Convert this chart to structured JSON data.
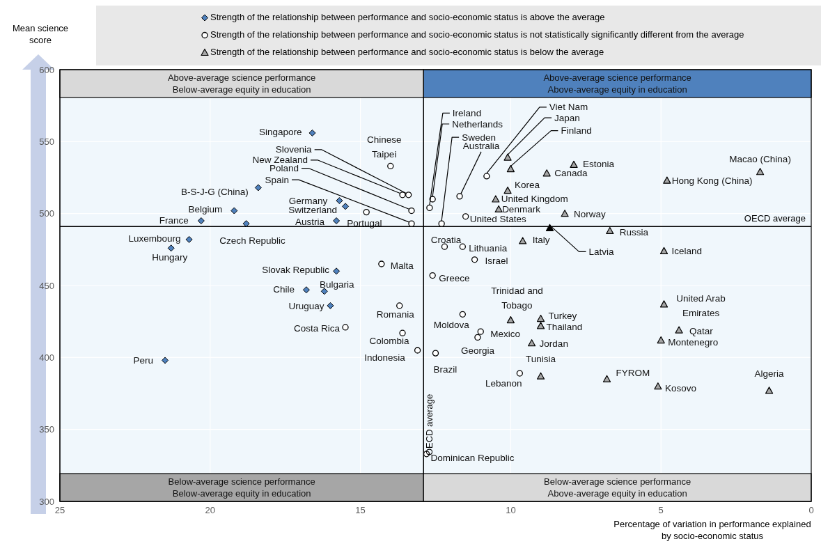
{
  "chart_data": {
    "type": "scatter",
    "xlabel": "Percentage of variation in performance explained by socio-economic status",
    "ylabel": "Mean science score",
    "xlim": [
      25,
      0
    ],
    "ylim": [
      300,
      600
    ],
    "xticks": [
      25,
      20,
      15,
      10,
      5,
      0
    ],
    "yticks": [
      300,
      350,
      400,
      450,
      500,
      550,
      600
    ],
    "grid": true,
    "legend": "top",
    "series": [
      {
        "name": "Strength of the relationship between performance and socio-economic status is above the average",
        "color": "#4f81bd",
        "marker": "diamond",
        "x": [
          16.6,
          18.4,
          19.2,
          20.3,
          18.8,
          15.7,
          15.5,
          15.8,
          20.7,
          21.3,
          15.8,
          16.8,
          16.2,
          16.0,
          21.5
        ],
        "values": [
          556,
          518,
          502,
          495,
          493,
          509,
          505,
          495,
          482,
          476,
          460,
          447,
          446,
          436,
          398
        ]
      },
      {
        "name": "Strength of the relationship between performance and socio-economic status is not statistically significantly different from the average",
        "color": "#ffffff",
        "marker": "circle",
        "x": [
          14.0,
          13.4,
          13.6,
          13.3,
          13.3,
          14.8,
          14.3,
          15.5,
          13.7,
          13.6,
          13.1,
          12.8,
          12.7,
          12.6,
          12.3,
          11.7,
          10.8,
          11.5,
          12.2,
          11.6,
          11.2,
          12.6,
          11.6,
          11.0,
          11.1,
          12.5,
          9.7
        ],
        "values": [
          533,
          513,
          513,
          502,
          493,
          501,
          465,
          421,
          436,
          417,
          405,
          333,
          504,
          510,
          493,
          512,
          526,
          498,
          477,
          477,
          468,
          457,
          430,
          418,
          414,
          403,
          389
        ]
      },
      {
        "name": "Strength of the relationship between performance and socio-economic status is below the average",
        "color": "#a6a6a6",
        "marker": "triangle",
        "x": [
          10.1,
          10.0,
          7.9,
          8.8,
          1.7,
          4.8,
          10.1,
          10.5,
          10.4,
          8.2,
          6.7,
          9.6,
          4.9,
          4.9,
          10.0,
          9.0,
          9.0,
          4.4,
          5.0,
          9.3,
          9.0,
          6.8,
          5.1,
          1.4
        ],
        "values": [
          539,
          531,
          534,
          528,
          529,
          523,
          516,
          510,
          503,
          500,
          488,
          481,
          474,
          437,
          426,
          427,
          422,
          419,
          412,
          410,
          387,
          385,
          380,
          377
        ]
      },
      {
        "color": "#000000",
        "marker": "triangle",
        "x": [
          8.7
        ],
        "values": [
          490
        ]
      }
    ],
    "ref_lines": [
      {
        "axis": "y",
        "value": 491,
        "label": "OECD average",
        "color": "#000000"
      },
      {
        "axis": "x",
        "value": 12.9,
        "label": "OECD average",
        "color": "#000000"
      }
    ],
    "annotations": [
      "Above-average science performance\nBelow-average equity in education",
      "Above-average science performance\nAbove-average equity in education",
      "Below-average science performance\nBelow-average equity in education",
      "Below-average science performance\nAbove-average equity in education",
      {
        "text": "Singapore",
        "x": 16.6,
        "y": 556
      },
      {
        "text": "B-S-J-G (China)",
        "x": 18.4,
        "y": 518
      },
      {
        "text": "Belgium",
        "x": 19.2,
        "y": 502
      },
      {
        "text": "France",
        "x": 20.3,
        "y": 495
      },
      {
        "text": "Czech Republic",
        "x": 18.8,
        "y": 493
      },
      {
        "text": "Germany",
        "x": 15.7,
        "y": 509
      },
      {
        "text": "Switzerland",
        "x": 15.5,
        "y": 505
      },
      {
        "text": "Austria",
        "x": 15.8,
        "y": 495
      },
      {
        "text": "Luxembourg",
        "x": 20.7,
        "y": 482
      },
      {
        "text": "Hungary",
        "x": 21.3,
        "y": 476
      },
      {
        "text": "Slovak Republic",
        "x": 15.8,
        "y": 460
      },
      {
        "text": "Chile",
        "x": 16.8,
        "y": 447
      },
      {
        "text": "Bulgaria",
        "x": 16.2,
        "y": 446
      },
      {
        "text": "Uruguay",
        "x": 16.0,
        "y": 436
      },
      {
        "text": "Peru",
        "x": 21.5,
        "y": 398
      },
      {
        "text": "Chinese Taipei",
        "x": 14.0,
        "y": 533
      },
      {
        "text": "Slovenia",
        "x": 13.4,
        "y": 513
      },
      {
        "text": "New Zealand",
        "x": 13.6,
        "y": 513
      },
      {
        "text": "Poland",
        "x": 13.3,
        "y": 502
      },
      {
        "text": "Spain",
        "x": 13.3,
        "y": 493
      },
      {
        "text": "Portugal",
        "x": 14.8,
        "y": 501
      },
      {
        "text": "Malta",
        "x": 14.3,
        "y": 465
      },
      {
        "text": "Costa Rica",
        "x": 15.5,
        "y": 421
      },
      {
        "text": "Romania",
        "x": 13.7,
        "y": 436
      },
      {
        "text": "Colombia",
        "x": 13.6,
        "y": 417
      },
      {
        "text": "Indonesia",
        "x": 13.1,
        "y": 405
      },
      {
        "text": "Dominican Republic",
        "x": 12.8,
        "y": 333
      },
      {
        "text": "Ireland",
        "x": 12.7,
        "y": 504
      },
      {
        "text": "Netherlands",
        "x": 12.6,
        "y": 510
      },
      {
        "text": "Sweden",
        "x": 12.3,
        "y": 493
      },
      {
        "text": "Australia",
        "x": 11.7,
        "y": 512
      },
      {
        "text": "Viet Nam",
        "x": 10.8,
        "y": 526
      },
      {
        "text": "United States",
        "x": 11.5,
        "y": 498
      },
      {
        "text": "Croatia",
        "x": 12.2,
        "y": 477
      },
      {
        "text": "Lithuania",
        "x": 11.6,
        "y": 477
      },
      {
        "text": "Israel",
        "x": 11.2,
        "y": 468
      },
      {
        "text": "Greece",
        "x": 12.6,
        "y": 457
      },
      {
        "text": "Moldova",
        "x": 11.6,
        "y": 430
      },
      {
        "text": "Mexico",
        "x": 11.0,
        "y": 418
      },
      {
        "text": "Georgia",
        "x": 11.1,
        "y": 414
      },
      {
        "text": "Brazil",
        "x": 12.5,
        "y": 403
      },
      {
        "text": "Lebanon",
        "x": 9.7,
        "y": 389
      },
      {
        "text": "Japan",
        "x": 10.1,
        "y": 539
      },
      {
        "text": "Finland",
        "x": 10.0,
        "y": 531
      },
      {
        "text": "Estonia",
        "x": 7.9,
        "y": 534
      },
      {
        "text": "Canada",
        "x": 8.8,
        "y": 528
      },
      {
        "text": "Macao (China)",
        "x": 1.7,
        "y": 529
      },
      {
        "text": "Hong Kong (China)",
        "x": 4.8,
        "y": 523
      },
      {
        "text": "Korea",
        "x": 10.1,
        "y": 516
      },
      {
        "text": "United Kingdom",
        "x": 10.5,
        "y": 510
      },
      {
        "text": "Denmark",
        "x": 10.4,
        "y": 503
      },
      {
        "text": "Norway",
        "x": 8.2,
        "y": 500
      },
      {
        "text": "Russia",
        "x": 6.7,
        "y": 488
      },
      {
        "text": "Italy",
        "x": 9.6,
        "y": 481
      },
      {
        "text": "Iceland",
        "x": 4.9,
        "y": 474
      },
      {
        "text": "United Arab Emirates",
        "x": 4.9,
        "y": 437
      },
      {
        "text": "Trinidad and Tobago",
        "x": 10.0,
        "y": 426
      },
      {
        "text": "Turkey",
        "x": 9.0,
        "y": 427
      },
      {
        "text": "Thailand",
        "x": 9.0,
        "y": 422
      },
      {
        "text": "Qatar",
        "x": 4.4,
        "y": 419
      },
      {
        "text": "Montenegro",
        "x": 5.0,
        "y": 412
      },
      {
        "text": "Jordan",
        "x": 9.3,
        "y": 410
      },
      {
        "text": "Tunisia",
        "x": 9.0,
        "y": 387
      },
      {
        "text": "FYROM",
        "x": 6.8,
        "y": 385
      },
      {
        "text": "Kosovo",
        "x": 5.1,
        "y": 380
      },
      {
        "text": "Algeria",
        "x": 1.4,
        "y": 377
      },
      {
        "text": "Latvia",
        "x": 8.7,
        "y": 490
      }
    ]
  }
}
